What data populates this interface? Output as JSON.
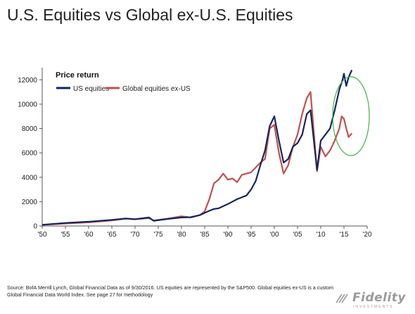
{
  "header": {
    "title": "U.S. Equities vs Global ex-U.S. Equities"
  },
  "footer": {
    "source": "Source: BofA Merrill Lynch, Global Financial Data as of 9/30/2016. US equities are represented by the S&P500. Global equities ex-US is a custom Global Financial Data World Index. See page 27 for methodology"
  },
  "logo": {
    "name": "Fidelity",
    "sub": "INVESTMENTS"
  },
  "colors": {
    "us": "#15265a",
    "global": "#c0504d",
    "highlight": "#3cb44b",
    "axis": "#555555"
  },
  "chart_data": {
    "type": "line",
    "subtitle": "Price return",
    "xlim": [
      1950,
      2020
    ],
    "ylim": [
      0,
      13000
    ],
    "x_ticks": [
      1950,
      1955,
      1960,
      1965,
      1970,
      1975,
      1980,
      1985,
      1990,
      1995,
      2000,
      2005,
      2010,
      2015,
      2020
    ],
    "x_tick_labels": [
      "'50",
      "'55",
      "'60",
      "'65",
      "'70",
      "'75",
      "'80",
      "'85",
      "'90",
      "'95",
      "'00",
      "'05",
      "'10",
      "'15",
      "'20"
    ],
    "y_ticks": [
      0,
      2000,
      4000,
      6000,
      8000,
      10000,
      12000
    ],
    "y_tick_labels": [
      "0",
      "2000",
      "4000",
      "6000",
      "8000",
      "10000",
      "12000"
    ],
    "legend_position": "top-left",
    "grid": false,
    "annotation": "green ellipse highlighting 2013-2016",
    "series": [
      {
        "name": "US equities",
        "x": [
          1950,
          1955,
          1960,
          1965,
          1968,
          1970,
          1973,
          1974,
          1977,
          1980,
          1982,
          1984,
          1986,
          1987,
          1988,
          1990,
          1992,
          1994,
          1995,
          1996,
          1997,
          1998,
          1999,
          2000,
          2001,
          2002,
          2003,
          2004,
          2005,
          2006,
          2007,
          2007.8,
          2009.2,
          2010,
          2011,
          2012,
          2013,
          2014,
          2014.7,
          2015,
          2015.5,
          2016,
          2016.7
        ],
        "values": [
          100,
          250,
          350,
          500,
          620,
          560,
          700,
          430,
          580,
          700,
          720,
          900,
          1250,
          1400,
          1450,
          1800,
          2200,
          2500,
          3000,
          3700,
          5000,
          6200,
          8200,
          9000,
          7000,
          5200,
          5500,
          6500,
          6800,
          7500,
          9200,
          9500,
          4600,
          7000,
          7500,
          8000,
          9500,
          11200,
          12000,
          12500,
          11500,
          12200,
          12800
        ]
      },
      {
        "name": "Global equities ex-US",
        "x": [
          1950,
          1955,
          1960,
          1965,
          1968,
          1970,
          1973,
          1974,
          1977,
          1980,
          1982,
          1984,
          1985,
          1986,
          1987,
          1988,
          1989,
          1990,
          1991,
          1992,
          1993,
          1994,
          1995,
          1996,
          1997,
          1998,
          1999,
          2000,
          2001,
          2002,
          2003,
          2004,
          2005,
          2006,
          2007,
          2007.8,
          2009.2,
          2010,
          2011,
          2012,
          2013,
          2014,
          2014.5,
          2015,
          2015.5,
          2016,
          2016.7
        ],
        "values": [
          100,
          200,
          300,
          450,
          600,
          550,
          650,
          450,
          600,
          800,
          700,
          900,
          1200,
          2200,
          3500,
          3800,
          4300,
          3800,
          3900,
          3600,
          4200,
          4300,
          4400,
          4800,
          5200,
          5500,
          8000,
          8300,
          6000,
          4300,
          5000,
          6500,
          7500,
          9200,
          10500,
          11000,
          4500,
          6500,
          5700,
          6200,
          7000,
          8000,
          9000,
          8800,
          8000,
          7300,
          7600
        ]
      }
    ]
  }
}
